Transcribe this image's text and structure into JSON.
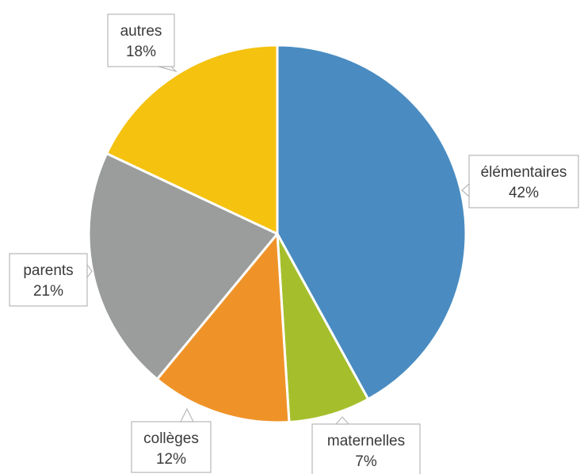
{
  "chart_data": {
    "type": "pie",
    "title": "",
    "legend": "none",
    "slices": [
      {
        "label": "élémentaires",
        "value": 42,
        "value_label": "42%",
        "color": "#4a8cc1"
      },
      {
        "label": "maternelles",
        "value": 7,
        "value_label": "7%",
        "color": "#a5bf2c"
      },
      {
        "label": "collèges",
        "value": 12,
        "value_label": "12%",
        "color": "#ef9329"
      },
      {
        "label": "parents",
        "value": 21,
        "value_label": "21%",
        "color": "#9a9d9c"
      },
      {
        "label": "autres",
        "value": 18,
        "value_label": "18%",
        "color": "#f4c20f"
      }
    ]
  }
}
